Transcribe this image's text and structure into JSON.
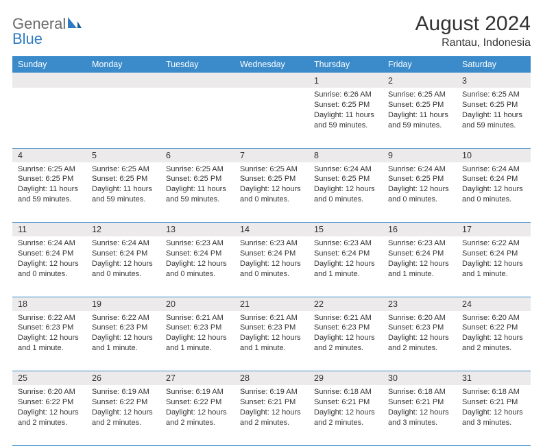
{
  "logo": {
    "word1": "General",
    "word2": "Blue"
  },
  "title": "August 2024",
  "location": "Rantau, Indonesia",
  "header_bg": "#3b8bca",
  "header_text": "#ffffff",
  "daynum_bg": "#eceaea",
  "row_border": "#3b8bca",
  "day_names": [
    "Sunday",
    "Monday",
    "Tuesday",
    "Wednesday",
    "Thursday",
    "Friday",
    "Saturday"
  ],
  "weeks": [
    {
      "days": [
        {
          "n": "",
          "lines": [
            "",
            "",
            "",
            ""
          ]
        },
        {
          "n": "",
          "lines": [
            "",
            "",
            "",
            ""
          ]
        },
        {
          "n": "",
          "lines": [
            "",
            "",
            "",
            ""
          ]
        },
        {
          "n": "",
          "lines": [
            "",
            "",
            "",
            ""
          ]
        },
        {
          "n": "1",
          "lines": [
            "Sunrise: 6:26 AM",
            "Sunset: 6:25 PM",
            "Daylight: 11 hours",
            "and 59 minutes."
          ]
        },
        {
          "n": "2",
          "lines": [
            "Sunrise: 6:25 AM",
            "Sunset: 6:25 PM",
            "Daylight: 11 hours",
            "and 59 minutes."
          ]
        },
        {
          "n": "3",
          "lines": [
            "Sunrise: 6:25 AM",
            "Sunset: 6:25 PM",
            "Daylight: 11 hours",
            "and 59 minutes."
          ]
        }
      ]
    },
    {
      "days": [
        {
          "n": "4",
          "lines": [
            "Sunrise: 6:25 AM",
            "Sunset: 6:25 PM",
            "Daylight: 11 hours",
            "and 59 minutes."
          ]
        },
        {
          "n": "5",
          "lines": [
            "Sunrise: 6:25 AM",
            "Sunset: 6:25 PM",
            "Daylight: 11 hours",
            "and 59 minutes."
          ]
        },
        {
          "n": "6",
          "lines": [
            "Sunrise: 6:25 AM",
            "Sunset: 6:25 PM",
            "Daylight: 11 hours",
            "and 59 minutes."
          ]
        },
        {
          "n": "7",
          "lines": [
            "Sunrise: 6:25 AM",
            "Sunset: 6:25 PM",
            "Daylight: 12 hours",
            "and 0 minutes."
          ]
        },
        {
          "n": "8",
          "lines": [
            "Sunrise: 6:24 AM",
            "Sunset: 6:25 PM",
            "Daylight: 12 hours",
            "and 0 minutes."
          ]
        },
        {
          "n": "9",
          "lines": [
            "Sunrise: 6:24 AM",
            "Sunset: 6:25 PM",
            "Daylight: 12 hours",
            "and 0 minutes."
          ]
        },
        {
          "n": "10",
          "lines": [
            "Sunrise: 6:24 AM",
            "Sunset: 6:24 PM",
            "Daylight: 12 hours",
            "and 0 minutes."
          ]
        }
      ]
    },
    {
      "days": [
        {
          "n": "11",
          "lines": [
            "Sunrise: 6:24 AM",
            "Sunset: 6:24 PM",
            "Daylight: 12 hours",
            "and 0 minutes."
          ]
        },
        {
          "n": "12",
          "lines": [
            "Sunrise: 6:24 AM",
            "Sunset: 6:24 PM",
            "Daylight: 12 hours",
            "and 0 minutes."
          ]
        },
        {
          "n": "13",
          "lines": [
            "Sunrise: 6:23 AM",
            "Sunset: 6:24 PM",
            "Daylight: 12 hours",
            "and 0 minutes."
          ]
        },
        {
          "n": "14",
          "lines": [
            "Sunrise: 6:23 AM",
            "Sunset: 6:24 PM",
            "Daylight: 12 hours",
            "and 0 minutes."
          ]
        },
        {
          "n": "15",
          "lines": [
            "Sunrise: 6:23 AM",
            "Sunset: 6:24 PM",
            "Daylight: 12 hours",
            "and 1 minute."
          ]
        },
        {
          "n": "16",
          "lines": [
            "Sunrise: 6:23 AM",
            "Sunset: 6:24 PM",
            "Daylight: 12 hours",
            "and 1 minute."
          ]
        },
        {
          "n": "17",
          "lines": [
            "Sunrise: 6:22 AM",
            "Sunset: 6:24 PM",
            "Daylight: 12 hours",
            "and 1 minute."
          ]
        }
      ]
    },
    {
      "days": [
        {
          "n": "18",
          "lines": [
            "Sunrise: 6:22 AM",
            "Sunset: 6:23 PM",
            "Daylight: 12 hours",
            "and 1 minute."
          ]
        },
        {
          "n": "19",
          "lines": [
            "Sunrise: 6:22 AM",
            "Sunset: 6:23 PM",
            "Daylight: 12 hours",
            "and 1 minute."
          ]
        },
        {
          "n": "20",
          "lines": [
            "Sunrise: 6:21 AM",
            "Sunset: 6:23 PM",
            "Daylight: 12 hours",
            "and 1 minute."
          ]
        },
        {
          "n": "21",
          "lines": [
            "Sunrise: 6:21 AM",
            "Sunset: 6:23 PM",
            "Daylight: 12 hours",
            "and 1 minute."
          ]
        },
        {
          "n": "22",
          "lines": [
            "Sunrise: 6:21 AM",
            "Sunset: 6:23 PM",
            "Daylight: 12 hours",
            "and 2 minutes."
          ]
        },
        {
          "n": "23",
          "lines": [
            "Sunrise: 6:20 AM",
            "Sunset: 6:23 PM",
            "Daylight: 12 hours",
            "and 2 minutes."
          ]
        },
        {
          "n": "24",
          "lines": [
            "Sunrise: 6:20 AM",
            "Sunset: 6:22 PM",
            "Daylight: 12 hours",
            "and 2 minutes."
          ]
        }
      ]
    },
    {
      "days": [
        {
          "n": "25",
          "lines": [
            "Sunrise: 6:20 AM",
            "Sunset: 6:22 PM",
            "Daylight: 12 hours",
            "and 2 minutes."
          ]
        },
        {
          "n": "26",
          "lines": [
            "Sunrise: 6:19 AM",
            "Sunset: 6:22 PM",
            "Daylight: 12 hours",
            "and 2 minutes."
          ]
        },
        {
          "n": "27",
          "lines": [
            "Sunrise: 6:19 AM",
            "Sunset: 6:22 PM",
            "Daylight: 12 hours",
            "and 2 minutes."
          ]
        },
        {
          "n": "28",
          "lines": [
            "Sunrise: 6:19 AM",
            "Sunset: 6:21 PM",
            "Daylight: 12 hours",
            "and 2 minutes."
          ]
        },
        {
          "n": "29",
          "lines": [
            "Sunrise: 6:18 AM",
            "Sunset: 6:21 PM",
            "Daylight: 12 hours",
            "and 2 minutes."
          ]
        },
        {
          "n": "30",
          "lines": [
            "Sunrise: 6:18 AM",
            "Sunset: 6:21 PM",
            "Daylight: 12 hours",
            "and 3 minutes."
          ]
        },
        {
          "n": "31",
          "lines": [
            "Sunrise: 6:18 AM",
            "Sunset: 6:21 PM",
            "Daylight: 12 hours",
            "and 3 minutes."
          ]
        }
      ]
    }
  ]
}
